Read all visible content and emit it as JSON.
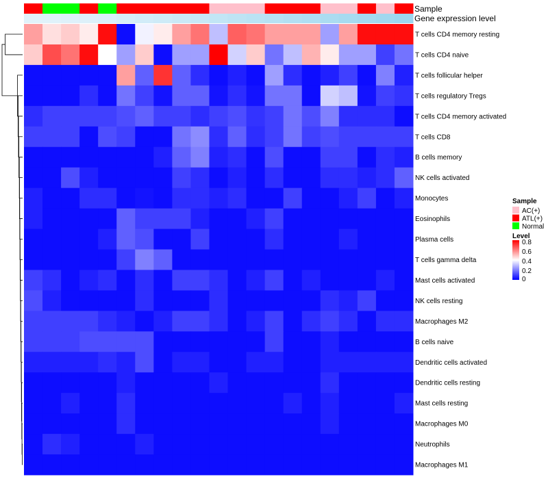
{
  "chart_data": {
    "type": "heatmap",
    "annotations": {
      "sample_label": "Sample",
      "gene_label": "Gene expression level"
    },
    "columns": [
      {
        "sample": "ATL(+)",
        "gene_level": 0.05
      },
      {
        "sample": "Normal",
        "gene_level": 0.06
      },
      {
        "sample": "Normal",
        "gene_level": 0.08
      },
      {
        "sample": "ATL(+)",
        "gene_level": 0.1
      },
      {
        "sample": "Normal",
        "gene_level": 0.13
      },
      {
        "sample": "ATL(+)",
        "gene_level": 0.17
      },
      {
        "sample": "ATL(+)",
        "gene_level": 0.21
      },
      {
        "sample": "ATL(+)",
        "gene_level": 0.25
      },
      {
        "sample": "ATL(+)",
        "gene_level": 0.29
      },
      {
        "sample": "ATL(+)",
        "gene_level": 0.33
      },
      {
        "sample": "AC(+)",
        "gene_level": 0.38
      },
      {
        "sample": "AC(+)",
        "gene_level": 0.42
      },
      {
        "sample": "AC(+)",
        "gene_level": 0.46
      },
      {
        "sample": "ATL(+)",
        "gene_level": 0.5
      },
      {
        "sample": "ATL(+)",
        "gene_level": 0.54
      },
      {
        "sample": "ATL(+)",
        "gene_level": 0.58
      },
      {
        "sample": "AC(+)",
        "gene_level": 0.62
      },
      {
        "sample": "AC(+)",
        "gene_level": 0.66
      },
      {
        "sample": "ATL(+)",
        "gene_level": 0.7
      },
      {
        "sample": "AC(+)",
        "gene_level": 0.74
      },
      {
        "sample": "ATL(+)",
        "gene_level": 0.78
      }
    ],
    "rows": [
      "T cells CD4 memory resting",
      "T cells CD4 naive",
      "T cells follicular helper",
      "T cells regulatory  Tregs",
      "T cells CD4 memory activated",
      "T cells CD8",
      "B cells memory",
      "NK cells activated",
      "Monocytes",
      "Eosinophils",
      "Plasma cells",
      "T cells gamma delta",
      "Mast cells activated",
      "NK cells resting",
      "Macrophages M2",
      "B cells naive",
      "Dendritic cells activated",
      "Dendritic cells resting",
      "Mast cells resting",
      "Macrophages M0",
      "Neutrophils",
      "Macrophages M1"
    ],
    "values": [
      [
        0.55,
        0.45,
        0.48,
        0.43,
        0.78,
        0.02,
        0.38,
        0.43,
        0.55,
        0.62,
        0.3,
        0.65,
        0.62,
        0.55,
        0.55,
        0.55,
        0.25,
        0.55,
        0.78,
        0.78,
        0.78
      ],
      [
        0.48,
        0.68,
        0.62,
        0.78,
        0.4,
        0.25,
        0.48,
        0.02,
        0.25,
        0.25,
        0.8,
        0.33,
        0.48,
        0.18,
        0.3,
        0.52,
        0.43,
        0.25,
        0.25,
        0.1,
        0.18
      ],
      [
        0.02,
        0.02,
        0.02,
        0.02,
        0.02,
        0.55,
        0.15,
        0.72,
        0.15,
        0.07,
        0.02,
        0.05,
        0.02,
        0.25,
        0.07,
        0.02,
        0.05,
        0.1,
        0.02,
        0.2,
        0.05
      ],
      [
        0.02,
        0.02,
        0.02,
        0.07,
        0.02,
        0.18,
        0.1,
        0.03,
        0.15,
        0.15,
        0.03,
        0.07,
        0.03,
        0.18,
        0.18,
        0.02,
        0.33,
        0.3,
        0.03,
        0.1,
        0.08
      ],
      [
        0.07,
        0.1,
        0.1,
        0.1,
        0.1,
        0.12,
        0.15,
        0.1,
        0.1,
        0.07,
        0.1,
        0.12,
        0.08,
        0.1,
        0.18,
        0.12,
        0.2,
        0.07,
        0.07,
        0.07,
        0.02
      ],
      [
        0.1,
        0.1,
        0.1,
        0.02,
        0.12,
        0.1,
        0.02,
        0.02,
        0.18,
        0.22,
        0.07,
        0.15,
        0.07,
        0.1,
        0.18,
        0.1,
        0.12,
        0.1,
        0.1,
        0.1,
        0.1
      ],
      [
        0.02,
        0.02,
        0.02,
        0.02,
        0.02,
        0.02,
        0.02,
        0.05,
        0.15,
        0.2,
        0.05,
        0.07,
        0.02,
        0.12,
        0.02,
        0.02,
        0.1,
        0.1,
        0.02,
        0.07,
        0.05
      ],
      [
        0.02,
        0.02,
        0.12,
        0.05,
        0.02,
        0.02,
        0.02,
        0.02,
        0.1,
        0.07,
        0.02,
        0.05,
        0.02,
        0.07,
        0.02,
        0.02,
        0.07,
        0.07,
        0.05,
        0.07,
        0.15
      ],
      [
        0.05,
        0.02,
        0.02,
        0.07,
        0.07,
        0.02,
        0.03,
        0.02,
        0.07,
        0.07,
        0.05,
        0.07,
        0.02,
        0.02,
        0.1,
        0.02,
        0.02,
        0.05,
        0.1,
        0.02,
        0.05
      ],
      [
        0.05,
        0.02,
        0.02,
        0.02,
        0.02,
        0.15,
        0.1,
        0.1,
        0.1,
        0.05,
        0.02,
        0.02,
        0.05,
        0.1,
        0.02,
        0.02,
        0.02,
        0.02,
        0.02,
        0.02,
        0.02
      ],
      [
        0.02,
        0.02,
        0.02,
        0.02,
        0.05,
        0.15,
        0.12,
        0.02,
        0.02,
        0.1,
        0.02,
        0.02,
        0.02,
        0.07,
        0.02,
        0.02,
        0.02,
        0.05,
        0.02,
        0.02,
        0.02
      ],
      [
        0.02,
        0.02,
        0.02,
        0.02,
        0.02,
        0.1,
        0.2,
        0.15,
        0.02,
        0.02,
        0.02,
        0.02,
        0.02,
        0.02,
        0.02,
        0.02,
        0.02,
        0.02,
        0.02,
        0.02,
        0.02
      ],
      [
        0.1,
        0.07,
        0.02,
        0.05,
        0.07,
        0.02,
        0.07,
        0.02,
        0.1,
        0.1,
        0.07,
        0.02,
        0.05,
        0.1,
        0.02,
        0.05,
        0.02,
        0.02,
        0.02,
        0.05,
        0.02
      ],
      [
        0.12,
        0.05,
        0.02,
        0.02,
        0.02,
        0.02,
        0.07,
        0.02,
        0.02,
        0.02,
        0.07,
        0.02,
        0.02,
        0.02,
        0.02,
        0.02,
        0.07,
        0.05,
        0.1,
        0.02,
        0.02
      ],
      [
        0.1,
        0.1,
        0.1,
        0.1,
        0.07,
        0.05,
        0.02,
        0.05,
        0.1,
        0.1,
        0.07,
        0.02,
        0.05,
        0.1,
        0.02,
        0.07,
        0.1,
        0.07,
        0.02,
        0.07,
        0.07
      ],
      [
        0.1,
        0.1,
        0.1,
        0.12,
        0.12,
        0.12,
        0.12,
        0.02,
        0.02,
        0.02,
        0.02,
        0.02,
        0.02,
        0.1,
        0.02,
        0.02,
        0.05,
        0.02,
        0.02,
        0.02,
        0.02
      ],
      [
        0.05,
        0.05,
        0.05,
        0.05,
        0.07,
        0.05,
        0.12,
        0.02,
        0.05,
        0.05,
        0.02,
        0.02,
        0.05,
        0.05,
        0.02,
        0.02,
        0.05,
        0.05,
        0.05,
        0.05,
        0.05
      ],
      [
        0.02,
        0.02,
        0.02,
        0.02,
        0.02,
        0.05,
        0.02,
        0.02,
        0.02,
        0.02,
        0.05,
        0.02,
        0.02,
        0.02,
        0.02,
        0.02,
        0.07,
        0.02,
        0.02,
        0.02,
        0.02
      ],
      [
        0.02,
        0.02,
        0.05,
        0.02,
        0.02,
        0.07,
        0.02,
        0.02,
        0.02,
        0.02,
        0.02,
        0.02,
        0.02,
        0.02,
        0.05,
        0.02,
        0.05,
        0.02,
        0.02,
        0.02,
        0.05
      ],
      [
        0.02,
        0.02,
        0.02,
        0.02,
        0.02,
        0.07,
        0.02,
        0.02,
        0.02,
        0.02,
        0.02,
        0.02,
        0.02,
        0.02,
        0.02,
        0.02,
        0.05,
        0.02,
        0.02,
        0.02,
        0.02
      ],
      [
        0.02,
        0.07,
        0.05,
        0.02,
        0.02,
        0.02,
        0.05,
        0.02,
        0.02,
        0.02,
        0.02,
        0.02,
        0.02,
        0.02,
        0.02,
        0.02,
        0.02,
        0.02,
        0.02,
        0.02,
        0.02
      ],
      [
        0.02,
        0.02,
        0.02,
        0.02,
        0.02,
        0.02,
        0.02,
        0.02,
        0.02,
        0.02,
        0.02,
        0.02,
        0.02,
        0.02,
        0.02,
        0.02,
        0.02,
        0.02,
        0.02,
        0.02,
        0.02
      ]
    ],
    "legend": {
      "sample_title": "Sample",
      "sample_entries": [
        {
          "label": "AC(+)",
          "color": "#FFC0CB"
        },
        {
          "label": "ATL(+)",
          "color": "#FF0000"
        },
        {
          "label": "Normal",
          "color": "#00FF00"
        }
      ],
      "level_title": "Level",
      "level_ticks": [
        "0.8",
        "0.6",
        "0.4",
        "0.2",
        "0"
      ],
      "level_range": [
        0,
        0.8
      ]
    },
    "colors": {
      "low": "#0000FF",
      "mid": "#FFFFFF",
      "high": "#FF0000",
      "gene_low": "#E6F4FB",
      "gene_high": "#87CEEB"
    },
    "dendrogram": {
      "leaves": [
        "T cells CD4 memory resting",
        "T cells CD4 naive",
        "T cells follicular helper",
        "T cells regulatory  Tregs",
        "T cells CD4 memory activated",
        "T cells CD8",
        "B cells memory",
        "NK cells activated",
        "Monocytes",
        "Eosinophils",
        "Plasma cells",
        "T cells gamma delta",
        "Mast cells activated",
        "NK cells resting",
        "Macrophages M2",
        "B cells naive",
        "Dendritic cells activated",
        "Dendritic cells resting",
        "Mast cells resting",
        "Macrophages M0",
        "Neutrophils",
        "Macrophages M1"
      ],
      "merges": [
        [
          -21,
          -22,
          0.02
        ],
        [
          -20,
          1,
          0.03
        ],
        [
          -19,
          2,
          0.04
        ],
        [
          -18,
          3,
          0.05
        ],
        [
          -17,
          4,
          0.06
        ],
        [
          -16,
          5,
          0.07
        ],
        [
          -15,
          6,
          0.08
        ],
        [
          -14,
          7,
          0.09
        ],
        [
          -13,
          8,
          0.1
        ],
        [
          -12,
          9,
          0.11
        ],
        [
          -11,
          10,
          0.12
        ],
        [
          -10,
          11,
          0.13
        ],
        [
          -9,
          12,
          0.14
        ],
        [
          -8,
          13,
          0.15
        ],
        [
          -7,
          14,
          0.16
        ],
        [
          -6,
          15,
          0.18
        ],
        [
          -5,
          16,
          0.2
        ],
        [
          -4,
          17,
          0.22
        ],
        [
          -3,
          18,
          0.25
        ],
        [
          -1,
          -2,
          0.85
        ],
        [
          19,
          20,
          1.0
        ]
      ]
    }
  }
}
